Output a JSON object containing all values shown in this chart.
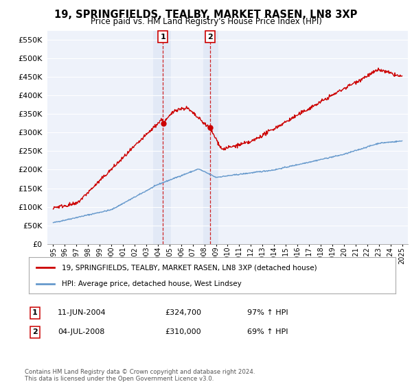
{
  "title": "19, SPRINGFIELDS, TEALBY, MARKET RASEN, LN8 3XP",
  "subtitle": "Price paid vs. HM Land Registry's House Price Index (HPI)",
  "legend_line1": "19, SPRINGFIELDS, TEALBY, MARKET RASEN, LN8 3XP (detached house)",
  "legend_line2": "HPI: Average price, detached house, West Lindsey",
  "sale1_label": "1",
  "sale1_date": "11-JUN-2004",
  "sale1_price": "£324,700",
  "sale1_pct": "97% ↑ HPI",
  "sale2_label": "2",
  "sale2_date": "04-JUL-2008",
  "sale2_price": "£310,000",
  "sale2_pct": "69% ↑ HPI",
  "footnote": "Contains HM Land Registry data © Crown copyright and database right 2024.\nThis data is licensed under the Open Government Licence v3.0.",
  "red_color": "#cc0000",
  "blue_color": "#6699cc",
  "sale1_year": 2004.44,
  "sale1_value": 324700,
  "sale2_year": 2008.51,
  "sale2_value": 310000,
  "ylim": [
    0,
    575000
  ],
  "xlim_start": 1994.5,
  "xlim_end": 2025.5,
  "background_color": "#eef2fa"
}
